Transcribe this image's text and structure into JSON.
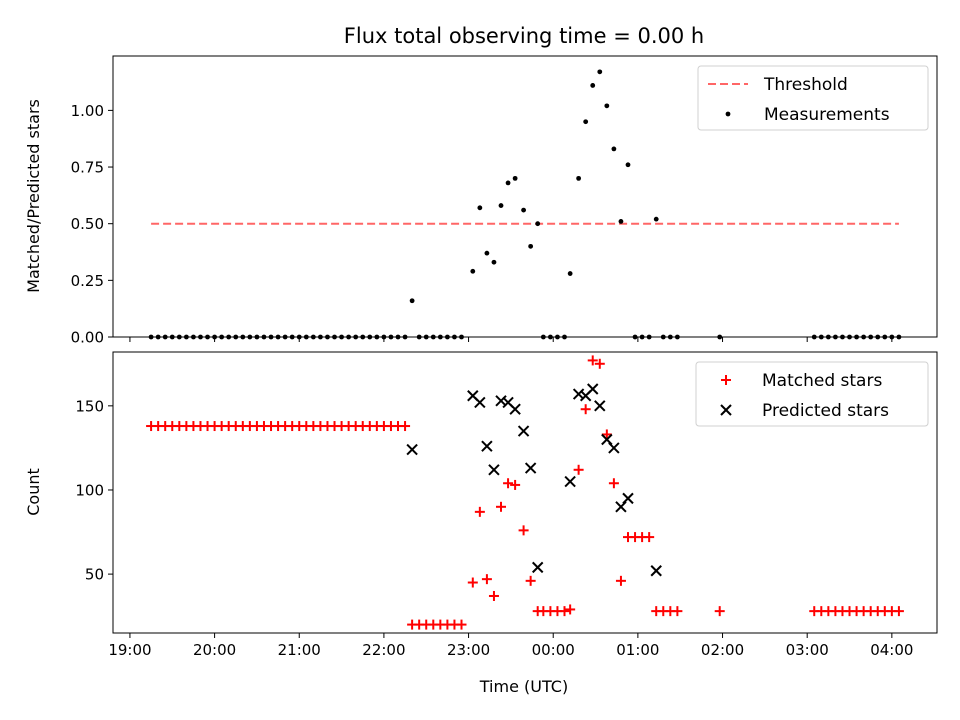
{
  "chart_data": {
    "title": "Flux total observing time = 0.00 h",
    "xlabel": "Time (UTC)",
    "x_ticks": [
      "19:00",
      "20:00",
      "21:00",
      "22:00",
      "23:00",
      "00:00",
      "01:00",
      "02:00",
      "03:00",
      "04:00"
    ],
    "colors": {
      "threshold": "#ff6666",
      "matched": "#ff0000",
      "predicted": "#000000",
      "measurements": "#000000"
    },
    "panels": [
      {
        "type": "scatter",
        "ylabel": "Matched/Predicted stars",
        "ylim": [
          0,
          1.24
        ],
        "y_ticks": [
          "0.00",
          "0.25",
          "0.50",
          "0.75",
          "1.00"
        ],
        "legend": {
          "position": "top-right",
          "entries": [
            "Threshold",
            "Measurements"
          ]
        },
        "threshold": {
          "name": "Threshold",
          "value": 0.5,
          "x_range": [
            "19:15",
            "04:05"
          ]
        },
        "series": [
          {
            "name": "Measurements",
            "marker": "dot",
            "points": [
              [
                "19:15",
                0
              ],
              [
                "19:20",
                0
              ],
              [
                "19:25",
                0
              ],
              [
                "19:30",
                0
              ],
              [
                "19:35",
                0
              ],
              [
                "19:40",
                0
              ],
              [
                "19:45",
                0
              ],
              [
                "19:50",
                0
              ],
              [
                "19:55",
                0
              ],
              [
                "20:00",
                0
              ],
              [
                "20:05",
                0
              ],
              [
                "20:10",
                0
              ],
              [
                "20:15",
                0
              ],
              [
                "20:20",
                0
              ],
              [
                "20:25",
                0
              ],
              [
                "20:30",
                0
              ],
              [
                "20:35",
                0
              ],
              [
                "20:40",
                0
              ],
              [
                "20:45",
                0
              ],
              [
                "20:50",
                0
              ],
              [
                "20:55",
                0
              ],
              [
                "21:00",
                0
              ],
              [
                "21:05",
                0
              ],
              [
                "21:10",
                0
              ],
              [
                "21:15",
                0
              ],
              [
                "21:20",
                0
              ],
              [
                "21:25",
                0
              ],
              [
                "21:30",
                0
              ],
              [
                "21:35",
                0
              ],
              [
                "21:40",
                0
              ],
              [
                "21:45",
                0
              ],
              [
                "21:50",
                0
              ],
              [
                "21:55",
                0
              ],
              [
                "22:00",
                0
              ],
              [
                "22:05",
                0
              ],
              [
                "22:10",
                0
              ],
              [
                "22:15",
                0
              ],
              [
                "22:20",
                0.16
              ],
              [
                "22:25",
                0
              ],
              [
                "22:30",
                0
              ],
              [
                "22:35",
                0
              ],
              [
                "22:40",
                0
              ],
              [
                "22:45",
                0
              ],
              [
                "22:50",
                0
              ],
              [
                "22:55",
                0
              ],
              [
                "23:03",
                0.29
              ],
              [
                "23:08",
                0.57
              ],
              [
                "23:13",
                0.37
              ],
              [
                "23:18",
                0.33
              ],
              [
                "23:23",
                0.58
              ],
              [
                "23:28",
                0.68
              ],
              [
                "23:33",
                0.7
              ],
              [
                "23:39",
                0.56
              ],
              [
                "23:44",
                0.4
              ],
              [
                "23:49",
                0.5
              ],
              [
                "23:53",
                0
              ],
              [
                "23:58",
                0
              ],
              [
                "00:03",
                0
              ],
              [
                "00:08",
                0
              ],
              [
                "00:12",
                0.28
              ],
              [
                "00:18",
                0.7
              ],
              [
                "00:23",
                0.95
              ],
              [
                "00:28",
                1.11
              ],
              [
                "00:33",
                1.17
              ],
              [
                "00:38",
                1.02
              ],
              [
                "00:43",
                0.83
              ],
              [
                "00:48",
                0.51
              ],
              [
                "00:53",
                0.76
              ],
              [
                "00:58",
                0
              ],
              [
                "01:03",
                0
              ],
              [
                "01:08",
                0
              ],
              [
                "01:13",
                0.52
              ],
              [
                "01:18",
                0
              ],
              [
                "01:23",
                0
              ],
              [
                "01:28",
                0
              ],
              [
                "01:58",
                0
              ],
              [
                "03:05",
                0
              ],
              [
                "03:10",
                0
              ],
              [
                "03:15",
                0
              ],
              [
                "03:20",
                0
              ],
              [
                "03:25",
                0
              ],
              [
                "03:30",
                0
              ],
              [
                "03:35",
                0
              ],
              [
                "03:40",
                0
              ],
              [
                "03:45",
                0
              ],
              [
                "03:50",
                0
              ],
              [
                "03:55",
                0
              ],
              [
                "04:00",
                0
              ],
              [
                "04:05",
                0
              ]
            ]
          }
        ]
      },
      {
        "type": "scatter",
        "ylabel": "Count",
        "ylim": [
          15,
          182
        ],
        "y_ticks": [
          "50",
          "100",
          "150"
        ],
        "legend": {
          "position": "top-right",
          "entries": [
            "Matched stars",
            "Predicted stars"
          ]
        },
        "series": [
          {
            "name": "Matched stars",
            "marker": "plus",
            "points": [
              [
                "19:15",
                138
              ],
              [
                "19:20",
                138
              ],
              [
                "19:25",
                138
              ],
              [
                "19:30",
                138
              ],
              [
                "19:35",
                138
              ],
              [
                "19:40",
                138
              ],
              [
                "19:45",
                138
              ],
              [
                "19:50",
                138
              ],
              [
                "19:55",
                138
              ],
              [
                "20:00",
                138
              ],
              [
                "20:05",
                138
              ],
              [
                "20:10",
                138
              ],
              [
                "20:15",
                138
              ],
              [
                "20:20",
                138
              ],
              [
                "20:25",
                138
              ],
              [
                "20:30",
                138
              ],
              [
                "20:35",
                138
              ],
              [
                "20:40",
                138
              ],
              [
                "20:45",
                138
              ],
              [
                "20:50",
                138
              ],
              [
                "20:55",
                138
              ],
              [
                "21:00",
                138
              ],
              [
                "21:05",
                138
              ],
              [
                "21:10",
                138
              ],
              [
                "21:15",
                138
              ],
              [
                "21:20",
                138
              ],
              [
                "21:25",
                138
              ],
              [
                "21:30",
                138
              ],
              [
                "21:35",
                138
              ],
              [
                "21:40",
                138
              ],
              [
                "21:45",
                138
              ],
              [
                "21:50",
                138
              ],
              [
                "21:55",
                138
              ],
              [
                "22:00",
                138
              ],
              [
                "22:05",
                138
              ],
              [
                "22:10",
                138
              ],
              [
                "22:15",
                138
              ],
              [
                "22:20",
                20
              ],
              [
                "22:25",
                20
              ],
              [
                "22:30",
                20
              ],
              [
                "22:35",
                20
              ],
              [
                "22:40",
                20
              ],
              [
                "22:45",
                20
              ],
              [
                "22:50",
                20
              ],
              [
                "22:55",
                20
              ],
              [
                "23:03",
                45
              ],
              [
                "23:08",
                87
              ],
              [
                "23:13",
                47
              ],
              [
                "23:18",
                37
              ],
              [
                "23:23",
                90
              ],
              [
                "23:28",
                104
              ],
              [
                "23:33",
                103
              ],
              [
                "23:39",
                76
              ],
              [
                "23:44",
                46
              ],
              [
                "23:49",
                28
              ],
              [
                "23:53",
                28
              ],
              [
                "23:58",
                28
              ],
              [
                "00:03",
                28
              ],
              [
                "00:08",
                28
              ],
              [
                "00:12",
                29
              ],
              [
                "00:18",
                112
              ],
              [
                "00:23",
                148
              ],
              [
                "00:28",
                177
              ],
              [
                "00:33",
                175
              ],
              [
                "00:38",
                133
              ],
              [
                "00:43",
                104
              ],
              [
                "00:48",
                46
              ],
              [
                "00:53",
                72
              ],
              [
                "00:58",
                72
              ],
              [
                "01:03",
                72
              ],
              [
                "01:08",
                72
              ],
              [
                "01:13",
                28
              ],
              [
                "01:18",
                28
              ],
              [
                "01:23",
                28
              ],
              [
                "01:28",
                28
              ],
              [
                "01:58",
                28
              ],
              [
                "03:05",
                28
              ],
              [
                "03:10",
                28
              ],
              [
                "03:15",
                28
              ],
              [
                "03:20",
                28
              ],
              [
                "03:25",
                28
              ],
              [
                "03:30",
                28
              ],
              [
                "03:35",
                28
              ],
              [
                "03:40",
                28
              ],
              [
                "03:45",
                28
              ],
              [
                "03:50",
                28
              ],
              [
                "03:55",
                28
              ],
              [
                "04:00",
                28
              ],
              [
                "04:05",
                28
              ]
            ]
          },
          {
            "name": "Predicted stars",
            "marker": "x",
            "points": [
              [
                "22:20",
                124
              ],
              [
                "23:03",
                156
              ],
              [
                "23:08",
                152
              ],
              [
                "23:13",
                126
              ],
              [
                "23:18",
                112
              ],
              [
                "23:23",
                153
              ],
              [
                "23:28",
                152
              ],
              [
                "23:33",
                148
              ],
              [
                "23:39",
                135
              ],
              [
                "23:44",
                113
              ],
              [
                "23:49",
                54
              ],
              [
                "00:12",
                105
              ],
              [
                "00:18",
                157
              ],
              [
                "00:23",
                156
              ],
              [
                "00:28",
                160
              ],
              [
                "00:33",
                150
              ],
              [
                "00:38",
                130
              ],
              [
                "00:43",
                125
              ],
              [
                "00:48",
                90
              ],
              [
                "00:53",
                95
              ],
              [
                "01:13",
                52
              ]
            ]
          }
        ]
      }
    ]
  }
}
